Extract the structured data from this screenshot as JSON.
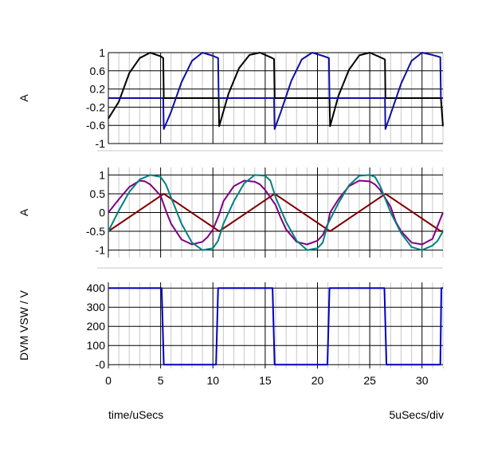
{
  "footer": {
    "left": "time/uSecs",
    "right": "5uSecs/div"
  },
  "chart_data": [
    {
      "type": "line",
      "ylabel": "A",
      "xlim": [
        0,
        32
      ],
      "ylim": [
        -1,
        1
      ],
      "yticks": [
        1,
        0.6,
        0.2,
        -0.2,
        -0.6,
        -1
      ],
      "ytick_labels": [
        "1",
        "0.6",
        "0.2",
        "-0.2",
        "-0.6",
        "-1"
      ],
      "grid": true,
      "series": [
        {
          "color": "#000000",
          "x": [
            0,
            1,
            2,
            3,
            4,
            5,
            5.25,
            5.3,
            6,
            7,
            8,
            9,
            10.25,
            10.55,
            10.6,
            11.5,
            12.5,
            13.5,
            14.5,
            15.5,
            15.85,
            15.9,
            16.5,
            17.5,
            18.5,
            19.5,
            20.5,
            21.15,
            21.2,
            22,
            23,
            24,
            25,
            25.8,
            26.45,
            26.5,
            27.5,
            28.5,
            29.5,
            30.5,
            31.8,
            32
          ],
          "y": [
            -0.45,
            -0.08,
            0.55,
            0.88,
            1.0,
            0.92,
            0.88,
            0.0,
            0.0,
            0.0,
            0.0,
            0.0,
            0.0,
            0.0,
            -0.62,
            0.1,
            0.66,
            0.95,
            1.0,
            0.9,
            0.86,
            0.0,
            0.0,
            0.0,
            0.0,
            0.0,
            0.0,
            0.0,
            -0.62,
            0.05,
            0.62,
            0.94,
            1.0,
            0.92,
            0.85,
            0.0,
            0.0,
            0.0,
            0.0,
            0.0,
            0.0,
            -0.62
          ]
        },
        {
          "color": "#1010a0",
          "x": [
            0,
            1,
            2,
            3,
            4,
            5,
            5.25,
            5.3,
            6,
            7,
            8,
            9,
            10,
            10.5,
            10.55,
            11,
            12,
            13,
            14,
            15,
            15.85,
            15.9,
            16.5,
            17.5,
            18.5,
            19.5,
            20.5,
            21.1,
            21.15,
            22,
            23,
            24,
            25,
            26,
            26.45,
            26.5,
            27,
            28,
            29,
            30,
            31,
            31.75,
            31.8,
            32
          ],
          "y": [
            0.0,
            0.0,
            0.0,
            0.0,
            0.0,
            0.0,
            0.0,
            -0.68,
            -0.3,
            0.35,
            0.82,
            1.0,
            0.93,
            0.88,
            0.0,
            0.0,
            0.0,
            0.0,
            0.0,
            0.0,
            0.0,
            -0.68,
            -0.3,
            0.38,
            0.85,
            1.0,
            0.93,
            0.88,
            0.0,
            0.0,
            0.0,
            0.0,
            0.0,
            0.0,
            0.0,
            -0.68,
            -0.35,
            0.32,
            0.82,
            1.0,
            0.95,
            0.9,
            0.0,
            0.0
          ]
        }
      ]
    },
    {
      "type": "line",
      "ylabel": "A",
      "xlim": [
        0,
        32
      ],
      "ylim": [
        -1.2,
        1.2
      ],
      "yticks": [
        1,
        0.5,
        0,
        -0.5,
        -1
      ],
      "ytick_labels": [
        "1",
        "0.5",
        "0",
        "-0.5",
        "-1"
      ],
      "grid": true,
      "series": [
        {
          "color": "#800000",
          "x": [
            0,
            5.3,
            10.6,
            15.9,
            21.2,
            26.5,
            31.8,
            32
          ],
          "y": [
            -0.5,
            0.5,
            -0.5,
            0.5,
            -0.5,
            0.5,
            -0.5,
            -0.48
          ]
        },
        {
          "color": "#800080",
          "x": [
            0,
            1,
            2,
            3,
            3.5,
            4,
            5,
            5.5,
            6,
            7,
            8,
            9,
            9.5,
            10,
            10.6,
            11,
            12,
            13,
            14,
            14.5,
            15,
            16,
            16.5,
            17,
            18,
            19,
            20,
            20.5,
            21,
            21.2,
            22,
            23,
            24,
            25,
            25.5,
            26,
            27,
            27.5,
            28,
            29,
            30,
            31,
            31.5,
            32
          ],
          "y": [
            0.0,
            0.35,
            0.68,
            0.85,
            0.83,
            0.75,
            0.45,
            0.05,
            -0.3,
            -0.72,
            -0.85,
            -0.78,
            -0.65,
            -0.45,
            -0.05,
            0.3,
            0.7,
            0.85,
            0.82,
            0.75,
            0.6,
            0.2,
            -0.15,
            -0.45,
            -0.78,
            -0.85,
            -0.75,
            -0.6,
            -0.3,
            0.0,
            0.35,
            0.7,
            0.85,
            0.83,
            0.75,
            0.6,
            0.15,
            -0.25,
            -0.5,
            -0.8,
            -0.85,
            -0.7,
            -0.35,
            0.0
          ]
        },
        {
          "color": "#008080",
          "x": [
            0,
            1,
            2,
            3,
            4,
            5,
            5.5,
            6,
            7,
            8,
            9,
            10,
            10.5,
            11,
            12,
            13,
            14,
            15,
            15.5,
            16,
            17,
            18,
            19,
            20,
            20.5,
            21,
            22,
            23,
            24,
            25,
            25.5,
            26,
            27,
            28,
            29,
            30,
            31,
            31.5,
            32
          ],
          "y": [
            -0.5,
            0.05,
            0.55,
            0.88,
            1.0,
            0.95,
            0.75,
            0.4,
            -0.3,
            -0.8,
            -1.0,
            -0.95,
            -0.75,
            -0.3,
            0.3,
            0.78,
            1.0,
            0.98,
            0.85,
            0.4,
            -0.25,
            -0.75,
            -1.0,
            -0.95,
            -0.8,
            -0.3,
            0.25,
            0.72,
            0.98,
            1.0,
            0.95,
            0.7,
            0.0,
            -0.55,
            -0.92,
            -1.0,
            -0.88,
            -0.75,
            -0.5
          ]
        }
      ]
    },
    {
      "type": "line",
      "ylabel": "DVM VSW / V",
      "xlabel": "time/uSecs",
      "xlim": [
        0,
        32
      ],
      "ylim": [
        -20,
        430
      ],
      "yticks": [
        400,
        300,
        200,
        100,
        0
      ],
      "ytick_labels": [
        "400",
        "300",
        "200",
        "100",
        "-0"
      ],
      "xticks": [
        0,
        5,
        10,
        15,
        20,
        25,
        30
      ],
      "xtick_labels": [
        "0",
        "5",
        "10",
        "15",
        "20",
        "25",
        "30"
      ],
      "grid": true,
      "series": [
        {
          "color": "#0000c0",
          "x": [
            0,
            5.1,
            5.3,
            10.3,
            10.5,
            15.7,
            15.9,
            20.95,
            21.15,
            26.4,
            26.6,
            31.75,
            31.85,
            32
          ],
          "y": [
            400,
            400,
            0,
            0,
            400,
            400,
            0,
            0,
            400,
            400,
            0,
            0,
            400,
            400
          ]
        }
      ]
    }
  ]
}
